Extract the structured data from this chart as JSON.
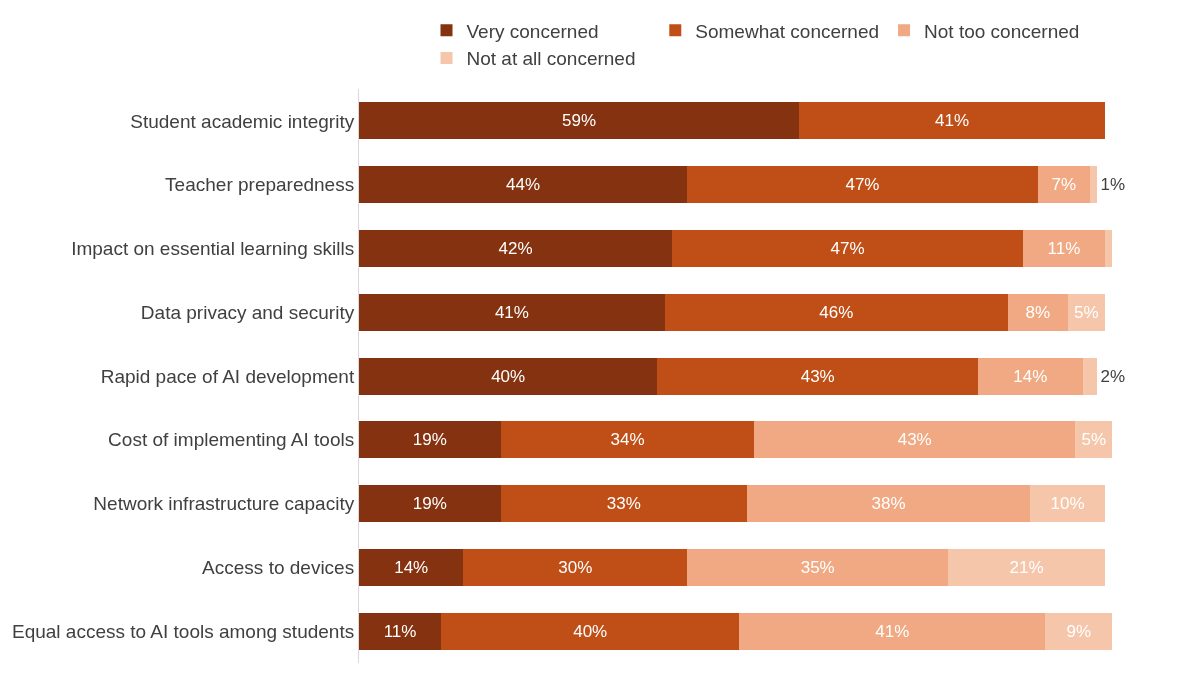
{
  "chart_data": {
    "type": "bar",
    "orientation": "horizontal",
    "stacked": true,
    "legend": "top",
    "tick_labels": "y",
    "categories": [
      "Student academic integrity",
      "Teacher preparedness",
      "Impact on essential learning skills",
      "Data privacy and security",
      "Rapid pace of AI development",
      "Cost of implementing AI tools",
      "Network infrastructure capacity",
      "Access to devices",
      "Equal access to AI tools among students"
    ],
    "series": [
      {
        "name": "Very concerned",
        "color": "#843210",
        "values": [
          59,
          44,
          42,
          41,
          40,
          19,
          19,
          14,
          11
        ],
        "value_labels": [
          "59%",
          "44%",
          "42%",
          "41%",
          "40%",
          "19%",
          "19%",
          "14%",
          "11%"
        ]
      },
      {
        "name": "Somewhat concerned",
        "color": "#c04f17",
        "values": [
          41,
          47,
          47,
          46,
          43,
          34,
          33,
          30,
          40
        ],
        "value_labels": [
          "41%",
          "47%",
          "47%",
          "46%",
          "43%",
          "34%",
          "33%",
          "30%",
          "40%"
        ]
      },
      {
        "name": "Not too concerned",
        "color": "#f1a983",
        "values": [
          0,
          7,
          11,
          8,
          14,
          43,
          38,
          35,
          41
        ],
        "value_labels": [
          null,
          "7%",
          "11%",
          "8%",
          "14%",
          "43%",
          "38%",
          "35%",
          "41%"
        ]
      },
      {
        "name": "Not at all concerned",
        "color": "#f6c6ab",
        "values": [
          0,
          1,
          1,
          5,
          2,
          5,
          10,
          21,
          9
        ],
        "value_labels": [
          null,
          "1%",
          null,
          "5%",
          "2%",
          "5%",
          "10%",
          "21%",
          "9%"
        ]
      }
    ]
  }
}
